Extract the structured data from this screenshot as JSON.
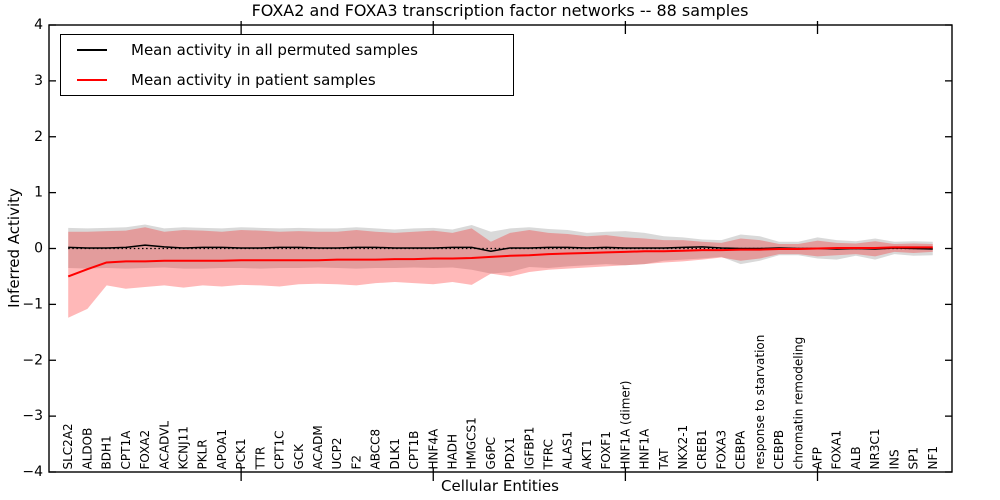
{
  "title": "FOXA2 and FOXA3 transcription factor networks -- 88 samples",
  "legend": {
    "items": [
      {
        "label": "Mean activity in all permuted samples",
        "color": "#000000"
      },
      {
        "label": "Mean activity in patient samples",
        "color": "#ff0000"
      }
    ]
  },
  "colors": {
    "permuted_line": "#000000",
    "patient_line": "#ff0000",
    "permuted_band": "rgba(0,0,0,0.15)",
    "patient_band": "rgba(255,0,0,0.28)",
    "frame": "#000000"
  },
  "chart_data": {
    "type": "line",
    "title": "FOXA2 and FOXA3 transcription factor networks -- 88 samples",
    "xlabel": "Cellular Entities",
    "ylabel": "Inferred Activity",
    "ylim": [
      -4,
      4
    ],
    "yticks": [
      4,
      3,
      2,
      1,
      0,
      -1,
      -2,
      -3,
      -4
    ],
    "grid": false,
    "legend_position": "upper left",
    "zero_reference_line": 0,
    "categories": [
      "SLC2A2",
      "ALDOB",
      "BDH1",
      "CPT1A",
      "FOXA2",
      "ACADVL",
      "KCNJ11",
      "PKLR",
      "APOA1",
      "PCK1",
      "TTR",
      "CPT1C",
      "GCK",
      "ACADM",
      "UCP2",
      "F2",
      "ABCC8",
      "DLK1",
      "CPT1B",
      "HNF4A",
      "HADH",
      "HMGCS1",
      "G6PC",
      "PDX1",
      "IGFBP1",
      "TFRC",
      "ALAS1",
      "AKT1",
      "FOXF1",
      "HNF1A (dimer)",
      "HNF1A",
      "TAT",
      "NKX2-1",
      "CREB1",
      "FOXA3",
      "CEBPA",
      "response to starvation",
      "CEBPB",
      "chromatin remodeling",
      "AFP",
      "FOXA1",
      "ALB",
      "NR3C1",
      "INS",
      "SP1",
      "NF1"
    ],
    "series": [
      {
        "name": "Mean activity in all permuted samples",
        "color": "#000000",
        "values": [
          0.02,
          0.01,
          0.01,
          0.02,
          0.06,
          0.03,
          0.01,
          0.02,
          0.02,
          0.01,
          0.01,
          0.02,
          0.02,
          0.01,
          0.01,
          0.02,
          0.02,
          0.01,
          0.01,
          0.01,
          0.02,
          0.02,
          -0.05,
          0.01,
          0.01,
          0.02,
          0.02,
          0.01,
          0.02,
          0.01,
          0.01,
          0.01,
          0.02,
          0.03,
          0.01,
          0.0,
          0.0,
          0.01,
          0.0,
          0.0,
          -0.01,
          0.0,
          -0.01,
          0.01,
          0.0,
          -0.01
        ]
      },
      {
        "name": "Mean activity in patient samples",
        "color": "#ff0000",
        "values": [
          -0.5,
          -0.37,
          -0.25,
          -0.23,
          -0.23,
          -0.22,
          -0.22,
          -0.22,
          -0.22,
          -0.21,
          -0.21,
          -0.21,
          -0.21,
          -0.21,
          -0.2,
          -0.2,
          -0.2,
          -0.19,
          -0.19,
          -0.18,
          -0.18,
          -0.17,
          -0.15,
          -0.13,
          -0.12,
          -0.1,
          -0.09,
          -0.08,
          -0.07,
          -0.06,
          -0.05,
          -0.05,
          -0.04,
          -0.03,
          -0.03,
          -0.02,
          -0.02,
          -0.01,
          -0.01,
          0.0,
          0.01,
          0.01,
          0.01,
          0.02,
          0.02,
          0.02
        ]
      }
    ],
    "bands": [
      {
        "name": "permuted std band",
        "color": "rgba(0,0,0,0.15)",
        "upper": [
          0.37,
          0.36,
          0.37,
          0.38,
          0.43,
          0.36,
          0.38,
          0.37,
          0.36,
          0.38,
          0.37,
          0.36,
          0.37,
          0.36,
          0.36,
          0.38,
          0.36,
          0.34,
          0.36,
          0.37,
          0.34,
          0.42,
          0.3,
          0.36,
          0.38,
          0.35,
          0.33,
          0.28,
          0.3,
          0.31,
          0.28,
          0.22,
          0.2,
          0.16,
          0.15,
          0.25,
          0.22,
          0.12,
          0.12,
          0.2,
          0.15,
          0.13,
          0.18,
          0.12,
          0.13,
          0.12
        ],
        "lower": [
          -0.35,
          -0.36,
          -0.35,
          -0.36,
          -0.35,
          -0.34,
          -0.36,
          -0.36,
          -0.35,
          -0.35,
          -0.36,
          -0.35,
          -0.35,
          -0.34,
          -0.35,
          -0.36,
          -0.35,
          -0.35,
          -0.34,
          -0.35,
          -0.34,
          -0.38,
          -0.45,
          -0.42,
          -0.33,
          -0.35,
          -0.32,
          -0.3,
          -0.28,
          -0.3,
          -0.28,
          -0.22,
          -0.2,
          -0.18,
          -0.15,
          -0.28,
          -0.22,
          -0.12,
          -0.12,
          -0.18,
          -0.2,
          -0.13,
          -0.2,
          -0.1,
          -0.13,
          -0.12
        ]
      },
      {
        "name": "patient std band",
        "color": "rgba(255,0,0,0.28)",
        "upper": [
          0.3,
          0.3,
          0.31,
          0.32,
          0.38,
          0.3,
          0.33,
          0.32,
          0.3,
          0.33,
          0.32,
          0.3,
          0.31,
          0.3,
          0.3,
          0.33,
          0.3,
          0.28,
          0.3,
          0.32,
          0.28,
          0.36,
          0.12,
          0.28,
          0.33,
          0.28,
          0.26,
          0.22,
          0.24,
          0.2,
          0.18,
          0.15,
          0.15,
          0.12,
          0.1,
          0.18,
          0.15,
          0.08,
          0.08,
          0.14,
          0.1,
          0.09,
          0.13,
          0.08,
          0.09,
          0.08
        ],
        "lower": [
          -1.24,
          -1.08,
          -0.66,
          -0.72,
          -0.69,
          -0.66,
          -0.7,
          -0.66,
          -0.68,
          -0.65,
          -0.66,
          -0.68,
          -0.64,
          -0.63,
          -0.64,
          -0.66,
          -0.62,
          -0.6,
          -0.62,
          -0.64,
          -0.6,
          -0.65,
          -0.45,
          -0.5,
          -0.42,
          -0.38,
          -0.36,
          -0.34,
          -0.32,
          -0.3,
          -0.28,
          -0.25,
          -0.23,
          -0.2,
          -0.16,
          -0.22,
          -0.18,
          -0.1,
          -0.1,
          -0.14,
          -0.12,
          -0.1,
          -0.14,
          -0.06,
          -0.08,
          -0.06
        ]
      }
    ]
  }
}
